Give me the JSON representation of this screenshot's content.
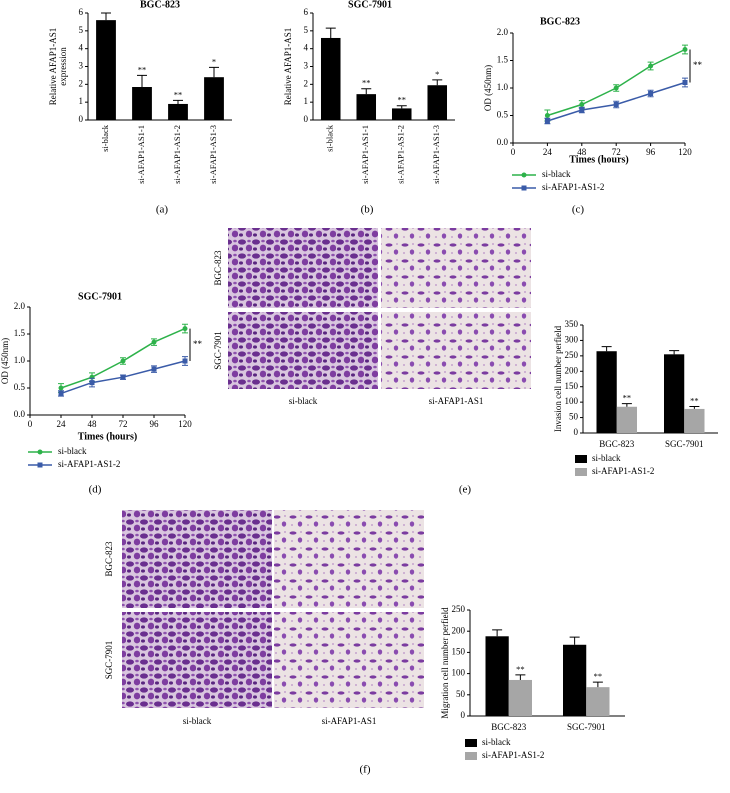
{
  "chart_data": [
    {
      "type": "bar",
      "title": "BGC-823",
      "ylabel": [
        "Relative AFAP1-AS1",
        "expression"
      ],
      "panel_label": "(a)",
      "categories": [
        "si-black",
        "si-AFAP1-AS1-1",
        "si-AFAP1-AS1-2",
        "si-AFAP1-AS1-3"
      ],
      "values": [
        5.6,
        1.85,
        0.9,
        2.4
      ],
      "errors": [
        0.4,
        0.65,
        0.2,
        0.55
      ],
      "annotations": [
        null,
        "**",
        "**",
        "*"
      ],
      "color": "#000000",
      "ylim": [
        0,
        6
      ],
      "yticks": [
        0,
        1,
        2,
        3,
        4,
        5,
        6
      ]
    },
    {
      "type": "bar",
      "title": "SGC-7901",
      "ylabel": [
        "Relative AFAP1-AS1"
      ],
      "panel_label": "(b)",
      "categories": [
        "si-black",
        "si-AFAP1-AS1-1",
        "si-AFAP1-AS1-2",
        "si-AFAP1-AS1-3"
      ],
      "values": [
        4.6,
        1.45,
        0.65,
        1.95
      ],
      "errors": [
        0.55,
        0.3,
        0.15,
        0.3
      ],
      "annotations": [
        null,
        "**",
        "**",
        "*"
      ],
      "color": "#000000",
      "ylim": [
        0,
        6
      ],
      "yticks": [
        0,
        1,
        2,
        3,
        4,
        5,
        6
      ]
    },
    {
      "type": "line",
      "title": "BGC-823",
      "xlabel": "Times (hours)",
      "ylabel": [
        "OD (450nm)"
      ],
      "panel_label": "(c)",
      "x": [
        24,
        48,
        72,
        96,
        120
      ],
      "xlim": [
        0,
        120
      ],
      "xticks": [
        0,
        24,
        48,
        72,
        96,
        120
      ],
      "ylim": [
        0,
        2
      ],
      "yticks": [
        {
          "value": 0,
          "label": "0.0"
        },
        0.5,
        {
          "value": 1,
          "label": "1.0"
        },
        1.5,
        {
          "value": 2,
          "label": "2.0"
        }
      ],
      "series": [
        {
          "name": "si-black",
          "color": "#2db24a",
          "values": [
            0.5,
            0.7,
            1.0,
            1.4,
            1.7
          ],
          "errors": [
            0.1,
            0.07,
            0.06,
            0.07,
            0.08
          ]
        },
        {
          "name": "si-AFAP1-AS1-2",
          "color": "#3a5ba8",
          "values": [
            0.4,
            0.6,
            0.7,
            0.9,
            1.1
          ],
          "errors": [
            0.05,
            0.05,
            0.06,
            0.06,
            0.08
          ]
        }
      ],
      "annotation": "**"
    },
    {
      "type": "line",
      "title": "SGC-7901",
      "xlabel": "Times (hours)",
      "ylabel": [
        "OD (450nm)"
      ],
      "panel_label": "(d)",
      "x": [
        24,
        48,
        72,
        96,
        120
      ],
      "xlim": [
        0,
        120
      ],
      "xticks": [
        0,
        24,
        48,
        72,
        96,
        120
      ],
      "ylim": [
        0,
        2
      ],
      "yticks": [
        {
          "value": 0,
          "label": "0.0"
        },
        0.5,
        {
          "value": 1,
          "label": "1.0"
        },
        1.5,
        {
          "value": 2,
          "label": "2.0"
        }
      ],
      "series": [
        {
          "name": "si-black",
          "color": "#2db24a",
          "values": [
            0.5,
            0.7,
            1.0,
            1.35,
            1.6
          ],
          "errors": [
            0.08,
            0.08,
            0.06,
            0.06,
            0.08
          ]
        },
        {
          "name": "si-AFAP1-AS1-2",
          "color": "#3a5ba8",
          "values": [
            0.4,
            0.6,
            0.7,
            0.85,
            1.0
          ],
          "errors": [
            0.05,
            0.08,
            0.04,
            0.06,
            0.08
          ]
        }
      ],
      "annotation": "**"
    },
    {
      "type": "bar",
      "ylabel": [
        "Invasion cell number perfield"
      ],
      "panel_label": "(e)",
      "image_rows": [
        "BGC-823",
        "SGC-7901"
      ],
      "image_columns": [
        "si-black",
        "si-AFAP1-AS1"
      ],
      "categories": [
        "BGC-823",
        "SGC-7901"
      ],
      "ylim": [
        0,
        350
      ],
      "yticks": [
        0,
        50,
        100,
        150,
        200,
        250,
        300,
        350
      ],
      "series": [
        {
          "name": "si-black",
          "color": "#000000",
          "values": [
            265,
            255
          ],
          "errors": [
            15,
            12
          ]
        },
        {
          "name": "si-AFAP1-AS1-2",
          "color": "#a6a6a6",
          "values": [
            85,
            78
          ],
          "errors": [
            10,
            8
          ],
          "annotations": [
            "**",
            "**"
          ]
        }
      ]
    },
    {
      "type": "bar",
      "ylabel": [
        "Migration cell number perfield"
      ],
      "panel_label": "(f)",
      "image_rows": [
        "BGC-823",
        "SGC-7901"
      ],
      "image_columns": [
        "si-black",
        "si-AFAP1-AS1"
      ],
      "categories": [
        "BGC-823",
        "SGC-7901"
      ],
      "ylim": [
        0,
        250
      ],
      "yticks": [
        0,
        50,
        100,
        150,
        200,
        250
      ],
      "series": [
        {
          "name": "si-black",
          "color": "#000000",
          "values": [
            188,
            168
          ],
          "errors": [
            15,
            18
          ]
        },
        {
          "name": "si-AFAP1-AS1-2",
          "color": "#a6a6a6",
          "values": [
            85,
            68
          ],
          "errors": [
            12,
            12
          ],
          "annotations": [
            "**",
            "**"
          ]
        }
      ]
    }
  ]
}
